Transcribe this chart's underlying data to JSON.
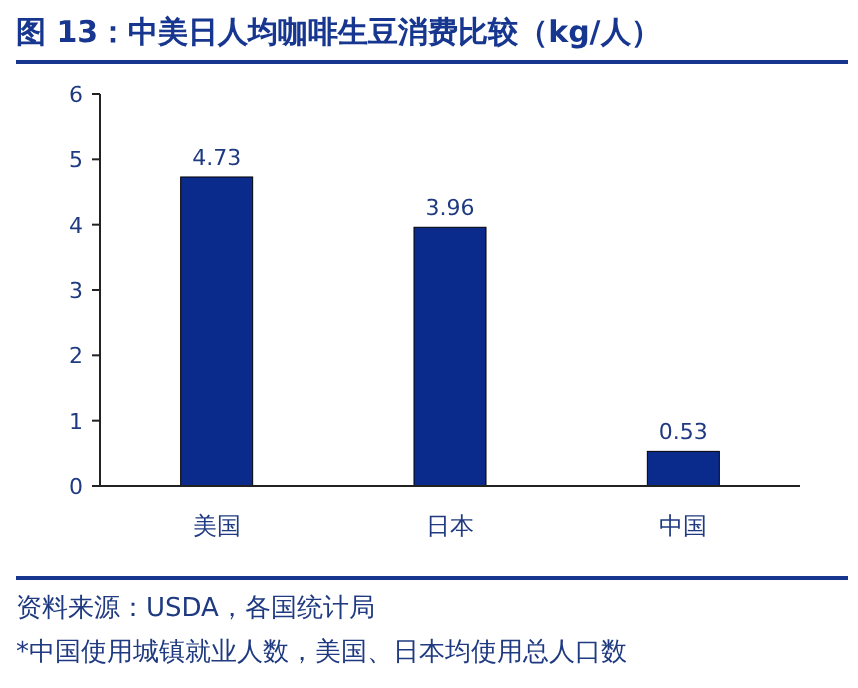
{
  "chart_data": {
    "type": "bar",
    "title": "图 13：中美日人均咖啡生豆消费比较（kg/人）",
    "categories": [
      "美国",
      "日本",
      "中国"
    ],
    "values": [
      4.73,
      3.96,
      0.53
    ],
    "color": "#0a2a8c",
    "ylim": [
      0,
      6
    ],
    "yticks": [
      0,
      1,
      2,
      3,
      4,
      5,
      6
    ],
    "data_labels": true,
    "annotations": [
      "资料来源：USDA，各国统计局",
      "*中国使用城镇就业人数，美国、日本均使用总人口数"
    ]
  }
}
